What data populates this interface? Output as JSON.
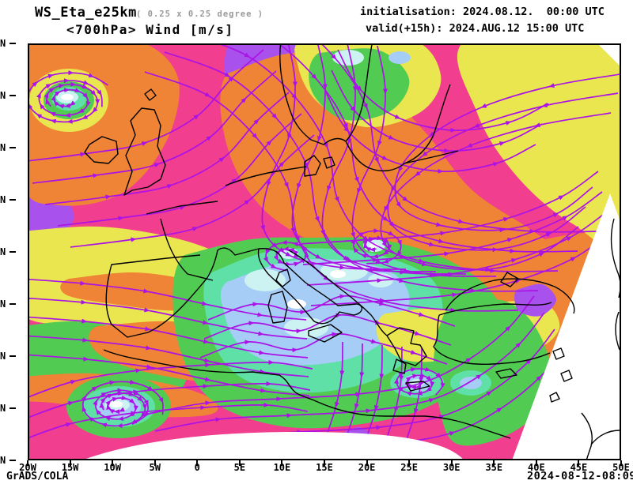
{
  "header": {
    "model": "WS_Eta_e25km",
    "resolution": "( 0.25 x 0.25 degree )",
    "level_line": "<700hPa> Wind [m/s]",
    "init_line": "initialisation: 2024.08.12.  00:00 UTC",
    "valid_line": "valid(+15h): 2024.AUG.12 15:00 UTC"
  },
  "footer": {
    "engine": "GrADS/COLA",
    "created": "2024-08-12-08:09"
  },
  "axes": {
    "lon_ticks": [
      "20W",
      "15W",
      "10W",
      "5W",
      "0",
      "5E",
      "10E",
      "15E",
      "20E",
      "25E",
      "30E",
      "35E",
      "40E",
      "45E",
      "50E"
    ],
    "lat_tick_label": "N",
    "lat_tick_count": 9
  },
  "chart_data": {
    "type": "heatmap",
    "subtype": "wind-speed shaded streamline map",
    "variable": "700 hPa wind [m/s]",
    "model": "WS_Eta_e25km",
    "grid_resolution": "0.25 x 0.25 degree",
    "initialisation": "2024.08.12. 00:00 UTC",
    "valid": "2024.AUG.12 15:00 UTC (+15h)",
    "x_axis": {
      "label": "longitude",
      "ticks": [
        "20W",
        "15W",
        "10W",
        "5W",
        "0",
        "5E",
        "10E",
        "15E",
        "20E",
        "25E",
        "30E",
        "35E",
        "40E",
        "45E",
        "50E"
      ],
      "range": [
        "20W",
        "50E"
      ],
      "tick_step_deg": 5
    },
    "y_axis": {
      "label": "latitude",
      "ticks_visible_text": [
        "N",
        "N",
        "N",
        "N",
        "N",
        "N",
        "N",
        "N",
        "N"
      ],
      "note": "latitude numerals cropped at left image edge, only N visible; 9 ticks evenly spaced"
    },
    "legend": "none shown (no colorbar in image)",
    "grid": false,
    "palette_low_to_high": [
      {
        "rank": 0,
        "name": "calm-core",
        "hex": "#ffffff"
      },
      {
        "rank": 1,
        "name": "pale-cyan",
        "hex": "#cdf2f2"
      },
      {
        "rank": 2,
        "name": "light-blue",
        "hex": "#a6cdf6"
      },
      {
        "rank": 3,
        "name": "aqua-green",
        "hex": "#5ee0a7"
      },
      {
        "rank": 4,
        "name": "green",
        "hex": "#52cb52"
      },
      {
        "rank": 5,
        "name": "yellow",
        "hex": "#e9e64f"
      },
      {
        "rank": 6,
        "name": "orange",
        "hex": "#ef8436"
      },
      {
        "rank": 7,
        "name": "pink-magenta",
        "hex": "#f23e8e"
      },
      {
        "rank": 8,
        "name": "violet",
        "hex": "#a951ec"
      }
    ],
    "streamline_color": "#ab12e6",
    "coastline_color": "#000000",
    "no_data_color": "#ffffff",
    "no_data_regions": [
      "bottom-centre strip",
      "large wedge lower-right (rotated Eta domain edge)",
      "small top-right corner triangle"
    ],
    "features": [
      {
        "feature": "cyclonic eddy with calm white/cyan core",
        "x_frac": 0.07,
        "y_frac": 0.14,
        "area": "NE Atlantic, top-left"
      },
      {
        "feature": "violet high-wind patch",
        "x_frac": 0.48,
        "y_frac": 0.12,
        "area": "north of Scotland / Norwegian Sea"
      },
      {
        "feature": "broad orange high-wind band",
        "x_frac": 0.6,
        "y_frac": 0.35,
        "area": "Scandinavia to Black Sea"
      },
      {
        "feature": "calm blue/cyan region with multiple eddies",
        "x_frac": 0.47,
        "y_frac": 0.6,
        "area": "central Mediterranean / Italy"
      },
      {
        "feature": "eddy",
        "x_frac": 0.58,
        "y_frac": 0.48,
        "area": "east of Adriatic"
      },
      {
        "feature": "cyclonic eddy with calm core",
        "x_frac": 0.15,
        "y_frac": 0.87,
        "area": "subtropical Atlantic, bottom-left"
      },
      {
        "feature": "eddy with calm core",
        "x_frac": 0.66,
        "y_frac": 0.81,
        "area": "SE Mediterranean"
      },
      {
        "feature": "strong pink/magenta zonal flow",
        "x_frac": 0.25,
        "y_frac": 0.35,
        "area": "Atlantic into western Europe"
      }
    ]
  }
}
